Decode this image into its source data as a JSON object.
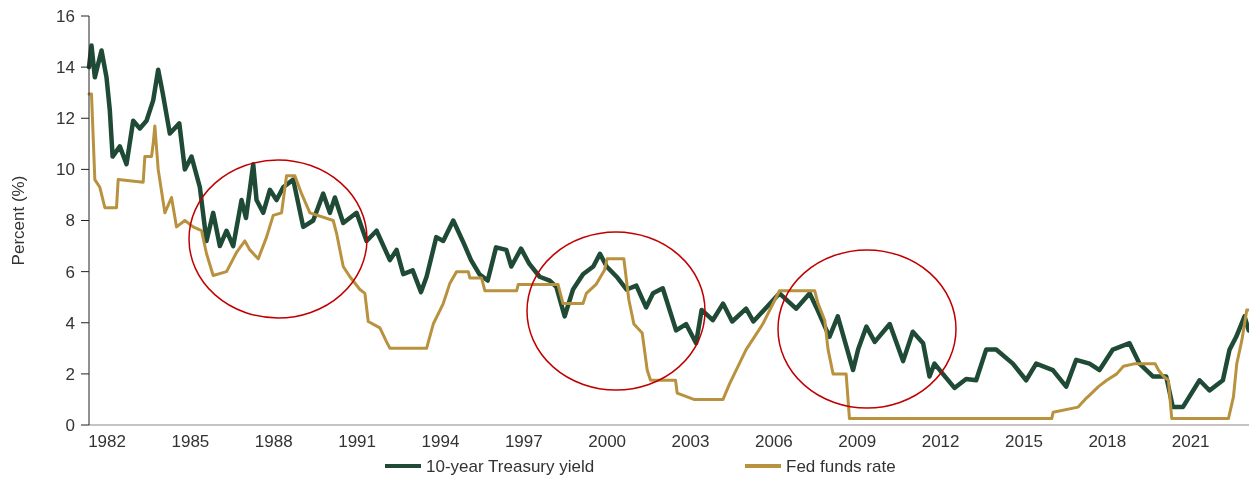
{
  "chart_data": {
    "type": "line",
    "ylabel": "Percent (%)",
    "xlim": [
      1981.35,
      2023.1
    ],
    "ylim": [
      0,
      16
    ],
    "xticks": [
      1982,
      1985,
      1988,
      1991,
      1994,
      1997,
      2000,
      2003,
      2006,
      2009,
      2012,
      2015,
      2018,
      2021
    ],
    "yticks": [
      0,
      2,
      4,
      6,
      8,
      10,
      12,
      14,
      16
    ],
    "grid": false,
    "legend": "bottom",
    "line_style": "solid",
    "marker": "none",
    "series": [
      {
        "name": "10-year Treasury yield",
        "color": "#1f4a36",
        "x": [
          1981.35,
          1981.44,
          1981.56,
          1981.8,
          1981.98,
          1982.1,
          1982.2,
          1982.46,
          1982.7,
          1982.94,
          1983.18,
          1983.42,
          1983.66,
          1983.84,
          1984.0,
          1984.26,
          1984.6,
          1984.8,
          1985.04,
          1985.34,
          1985.58,
          1985.82,
          1986.06,
          1986.3,
          1986.54,
          1986.84,
          1987.0,
          1987.26,
          1987.38,
          1987.62,
          1987.86,
          1988.1,
          1988.34,
          1988.7,
          1989.06,
          1989.42,
          1989.78,
          1990.02,
          1990.2,
          1990.5,
          1990.98,
          1991.34,
          1991.7,
          1992.18,
          1992.42,
          1992.66,
          1993.0,
          1993.3,
          1993.5,
          1993.85,
          1994.1,
          1994.46,
          1994.8,
          1995.1,
          1995.4,
          1995.7,
          1996.0,
          1996.37,
          1996.55,
          1996.9,
          1997.2,
          1997.57,
          1997.93,
          1998.17,
          1998.47,
          1998.77,
          1999.13,
          1999.5,
          1999.74,
          1999.98,
          2000.34,
          2000.7,
          2001.05,
          2001.4,
          2001.65,
          2002.0,
          2002.48,
          2002.84,
          2003.2,
          2003.4,
          2003.8,
          2004.17,
          2004.5,
          2005.0,
          2005.26,
          2005.73,
          2006.2,
          2006.8,
          2007.29,
          2007.53,
          2008.0,
          2008.3,
          2008.85,
          2009.03,
          2009.33,
          2009.63,
          2010.17,
          2010.65,
          2011.0,
          2011.37,
          2011.6,
          2011.78,
          2012.08,
          2012.5,
          2012.92,
          2013.28,
          2013.64,
          2014.0,
          2014.6,
          2015.08,
          2015.44,
          2016.04,
          2016.52,
          2016.88,
          2017.36,
          2017.72,
          2018.2,
          2018.8,
          2019.16,
          2019.64,
          2020.12,
          2020.36,
          2020.72,
          2021.32,
          2021.68,
          2022.16,
          2022.4,
          2022.64,
          2022.94,
          2023.09
        ],
        "values": [
          14.0,
          14.85,
          13.6,
          14.65,
          13.6,
          12.3,
          10.5,
          10.9,
          10.2,
          11.9,
          11.6,
          11.9,
          12.7,
          13.9,
          13.0,
          11.4,
          11.8,
          10.0,
          10.5,
          9.3,
          7.2,
          8.3,
          7.0,
          7.6,
          7.0,
          8.8,
          8.1,
          10.2,
          8.8,
          8.3,
          9.2,
          8.8,
          9.3,
          9.6,
          7.75,
          8.0,
          9.05,
          8.3,
          8.9,
          7.9,
          8.3,
          7.2,
          7.6,
          6.45,
          6.85,
          5.9,
          6.05,
          5.2,
          5.8,
          7.35,
          7.2,
          8.0,
          7.2,
          6.45,
          5.9,
          5.65,
          6.95,
          6.85,
          6.2,
          6.9,
          6.3,
          5.8,
          5.65,
          5.4,
          4.25,
          5.3,
          5.9,
          6.2,
          6.7,
          6.2,
          5.8,
          5.3,
          5.45,
          4.6,
          5.15,
          5.35,
          3.7,
          3.95,
          3.2,
          4.5,
          4.1,
          4.75,
          4.05,
          4.55,
          4.05,
          4.6,
          5.15,
          4.55,
          5.15,
          4.6,
          3.45,
          4.25,
          2.15,
          2.95,
          3.85,
          3.25,
          3.95,
          2.5,
          3.65,
          3.2,
          1.9,
          2.4,
          2.0,
          1.45,
          1.8,
          1.75,
          2.95,
          2.95,
          2.4,
          1.75,
          2.4,
          2.15,
          1.5,
          2.55,
          2.4,
          2.15,
          2.95,
          3.2,
          2.4,
          1.9,
          1.9,
          0.7,
          0.7,
          1.75,
          1.35,
          1.75,
          2.95,
          3.45,
          4.25,
          3.7
        ]
      },
      {
        "name": "Fed funds rate",
        "color": "#b8923e",
        "x": [
          1981.35,
          1981.44,
          1981.56,
          1981.74,
          1981.92,
          1982.34,
          1982.4,
          1983.3,
          1983.36,
          1983.6,
          1983.66,
          1983.72,
          1983.84,
          1984.08,
          1984.32,
          1984.5,
          1984.8,
          1985.1,
          1985.4,
          1985.58,
          1985.82,
          1986.3,
          1986.66,
          1986.96,
          1987.14,
          1987.44,
          1987.74,
          1987.98,
          1988.28,
          1988.46,
          1988.76,
          1989.0,
          1989.3,
          1990.14,
          1990.26,
          1990.5,
          1990.74,
          1991.1,
          1991.28,
          1991.4,
          1991.82,
          1992.06,
          1992.18,
          1993.5,
          1993.74,
          1994.1,
          1994.34,
          1994.58,
          1995.0,
          1995.06,
          1995.48,
          1995.6,
          1996.74,
          1996.8,
          1998.23,
          1998.41,
          1999.13,
          1999.25,
          1999.6,
          1999.9,
          2000.0,
          2000.6,
          2000.78,
          2000.96,
          2001.26,
          2001.44,
          2001.56,
          2002.46,
          2002.52,
          2003.12,
          2004.17,
          2004.4,
          2005.0,
          2005.6,
          2006.2,
          2007.47,
          2007.59,
          2007.83,
          2007.95,
          2008.13,
          2008.6,
          2008.72,
          2016.0,
          2016.05,
          2016.95,
          2017.2,
          2017.44,
          2017.68,
          2017.98,
          2018.34,
          2018.58,
          2019.0,
          2019.72,
          2019.84,
          2020.02,
          2020.2,
          2020.32,
          2022.36,
          2022.54,
          2022.66,
          2022.84,
          2023.02,
          2023.09
        ],
        "values": [
          12.95,
          12.95,
          9.6,
          9.3,
          8.5,
          8.5,
          9.6,
          9.5,
          10.5,
          10.5,
          11.0,
          11.7,
          10.0,
          8.3,
          8.9,
          7.75,
          8.0,
          7.75,
          7.6,
          6.7,
          5.85,
          6.0,
          6.75,
          7.2,
          6.85,
          6.5,
          7.35,
          8.2,
          8.3,
          9.75,
          9.75,
          9.05,
          8.3,
          8.0,
          7.5,
          6.2,
          5.8,
          5.3,
          5.15,
          4.05,
          3.8,
          3.25,
          3.0,
          3.0,
          3.95,
          4.75,
          5.55,
          6.0,
          6.0,
          5.75,
          5.75,
          5.25,
          5.25,
          5.5,
          5.5,
          4.75,
          4.75,
          5.15,
          5.5,
          6.05,
          6.5,
          6.5,
          4.9,
          3.95,
          3.6,
          2.15,
          1.75,
          1.75,
          1.25,
          1.0,
          1.0,
          1.6,
          2.95,
          3.95,
          5.25,
          5.25,
          4.75,
          4.1,
          2.95,
          2.0,
          2.0,
          0.25,
          0.25,
          0.5,
          0.7,
          1.0,
          1.25,
          1.5,
          1.75,
          2.0,
          2.3,
          2.4,
          2.4,
          2.15,
          1.9,
          1.75,
          0.25,
          0.25,
          1.1,
          2.4,
          3.3,
          4.5,
          4.5
        ]
      }
    ]
  }
}
